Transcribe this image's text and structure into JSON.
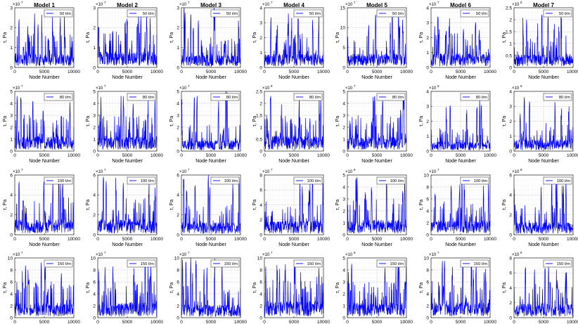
{
  "chart_data": {
    "type": "line",
    "series_color": "#0000ff",
    "grid": true,
    "legend_location": "top-right",
    "xlabel": "Node Number",
    "ylabel": "τ, Pa",
    "xlim": [
      0,
      10000
    ],
    "xticks": [
      0,
      5000,
      10000
    ],
    "column_titles": [
      "Model 1",
      "Model 2",
      "Model 3",
      "Model 4",
      "Model 5",
      "Model 6",
      "Model 7"
    ],
    "rows": [
      {
        "legend": "50 t/m",
        "panels": [
          {
            "multiplier": "×10",
            "exponent": "7",
            "ylim": [
              0,
              3
            ],
            "yticks": [
              0,
              1,
              2,
              3
            ],
            "peak_max": 2.7,
            "base": 0.45
          },
          {
            "multiplier": "×10",
            "exponent": "7",
            "ylim": [
              0,
              3
            ],
            "yticks": [
              0,
              1,
              2,
              3
            ],
            "peak_max": 2.8,
            "base": 0.5
          },
          {
            "multiplier": "×10",
            "exponent": "7",
            "ylim": [
              0,
              3
            ],
            "yticks": [
              0,
              1,
              2,
              3
            ],
            "peak_max": 3.0,
            "base": 0.4
          },
          {
            "multiplier": "×10",
            "exponent": "7",
            "ylim": [
              0,
              4
            ],
            "yticks": [
              0,
              1,
              2,
              3,
              4
            ],
            "peak_max": 3.6,
            "base": 0.6
          },
          {
            "multiplier": "×10",
            "exponent": "7",
            "ylim": [
              0,
              15
            ],
            "yticks": [
              0,
              5,
              10,
              15
            ],
            "peak_max": 13.5,
            "base": 2.2
          },
          {
            "multiplier": "×10",
            "exponent": "7",
            "ylim": [
              0,
              4
            ],
            "yticks": [
              0,
              1,
              2,
              3,
              4
            ],
            "peak_max": 3.4,
            "base": 0.6
          },
          {
            "multiplier": "×10",
            "exponent": "8",
            "ylim": [
              0,
              2.5
            ],
            "yticks": [
              0,
              0.5,
              1,
              1.5,
              2,
              2.5
            ],
            "peak_max": 2.2,
            "base": 0.35
          }
        ]
      },
      {
        "legend": "80 t/m",
        "panels": [
          {
            "multiplier": "×10",
            "exponent": "7",
            "ylim": [
              0,
              5
            ],
            "yticks": [
              0,
              1,
              2,
              3,
              4,
              5
            ],
            "peak_max": 4.6,
            "base": 0.8
          },
          {
            "multiplier": "×10",
            "exponent": "7",
            "ylim": [
              0,
              5
            ],
            "yticks": [
              0,
              1,
              2,
              3,
              4,
              5
            ],
            "peak_max": 4.6,
            "base": 0.8
          },
          {
            "multiplier": "×10",
            "exponent": "7",
            "ylim": [
              0,
              5
            ],
            "yticks": [
              0,
              1,
              2,
              3,
              4,
              5
            ],
            "peak_max": 5.0,
            "base": 0.6
          },
          {
            "multiplier": "×10",
            "exponent": "8",
            "ylim": [
              0,
              2.5
            ],
            "yticks": [
              0,
              0.5,
              1,
              1.5,
              2,
              2.5
            ],
            "peak_max": 2.3,
            "base": 0.4
          },
          {
            "multiplier": "×10",
            "exponent": "7",
            "ylim": [
              0,
              5
            ],
            "yticks": [
              0,
              1,
              2,
              3,
              4,
              5
            ],
            "peak_max": 4.6,
            "base": 0.8
          },
          {
            "multiplier": "×10",
            "exponent": "8",
            "ylim": [
              0,
              4
            ],
            "yticks": [
              0,
              1,
              2,
              3,
              4
            ],
            "peak_max": 3.4,
            "base": 0.4
          },
          {
            "multiplier": "×10",
            "exponent": "8",
            "ylim": [
              0,
              4
            ],
            "yticks": [
              0,
              1,
              2,
              3,
              4
            ],
            "peak_max": 3.6,
            "base": 0.5
          }
        ]
      },
      {
        "legend": "100 t/m",
        "panels": [
          {
            "multiplier": "×10",
            "exponent": "7",
            "ylim": [
              0,
              6
            ],
            "yticks": [
              0,
              2,
              4,
              6
            ],
            "peak_max": 5.6,
            "base": 1.0
          },
          {
            "multiplier": "×10",
            "exponent": "7",
            "ylim": [
              0,
              6
            ],
            "yticks": [
              0,
              2,
              4,
              6
            ],
            "peak_max": 5.8,
            "base": 1.0
          },
          {
            "multiplier": "×10",
            "exponent": "7",
            "ylim": [
              0,
              6
            ],
            "yticks": [
              0,
              2,
              4,
              6
            ],
            "peak_max": 6.0,
            "base": 0.8
          },
          {
            "multiplier": "×10",
            "exponent": "7",
            "ylim": [
              0,
              8
            ],
            "yticks": [
              0,
              2,
              4,
              6,
              8
            ],
            "peak_max": 7.0,
            "base": 1.2
          },
          {
            "multiplier": "×10",
            "exponent": "8",
            "ylim": [
              0,
              5
            ],
            "yticks": [
              0,
              1,
              2,
              3,
              4,
              5
            ],
            "peak_max": 4.8,
            "base": 0.8
          },
          {
            "multiplier": "×10",
            "exponent": "7",
            "ylim": [
              0,
              10
            ],
            "yticks": [
              0,
              2,
              4,
              6,
              8,
              10
            ],
            "peak_max": 8.5,
            "base": 1.5
          },
          {
            "multiplier": "×10",
            "exponent": "8",
            "ylim": [
              0,
              6
            ],
            "yticks": [
              0,
              2,
              4,
              6
            ],
            "peak_max": 5.5,
            "base": 0.8
          }
        ]
      },
      {
        "legend": "150 t/m",
        "panels": [
          {
            "multiplier": "×10",
            "exponent": "7",
            "ylim": [
              0,
              10
            ],
            "yticks": [
              0,
              2,
              4,
              6,
              8,
              10
            ],
            "peak_max": 9.2,
            "base": 1.6
          },
          {
            "multiplier": "×10",
            "exponent": "7",
            "ylim": [
              0,
              10
            ],
            "yticks": [
              0,
              2,
              4,
              6,
              8,
              10
            ],
            "peak_max": 9.4,
            "base": 1.6
          },
          {
            "multiplier": "×10",
            "exponent": "7",
            "ylim": [
              0,
              10
            ],
            "yticks": [
              0,
              2,
              4,
              6,
              8,
              10
            ],
            "peak_max": 10.0,
            "base": 1.4
          },
          {
            "multiplier": "×10",
            "exponent": "7",
            "ylim": [
              0,
              10
            ],
            "yticks": [
              0,
              2,
              4,
              6,
              8,
              10
            ],
            "peak_max": 9.0,
            "base": 1.8
          },
          {
            "multiplier": "×10",
            "exponent": "8",
            "ylim": [
              0,
              5
            ],
            "yticks": [
              0,
              1,
              2,
              3,
              4,
              5
            ],
            "peak_max": 4.6,
            "base": 0.8
          },
          {
            "multiplier": "×10",
            "exponent": "7",
            "ylim": [
              0,
              10
            ],
            "yticks": [
              0,
              2,
              4,
              6,
              8,
              10
            ],
            "peak_max": 9.5,
            "base": 1.6
          },
          {
            "multiplier": "×10",
            "exponent": "8",
            "ylim": [
              0,
              8
            ],
            "yticks": [
              0,
              2,
              4,
              6,
              8
            ],
            "peak_max": 6.8,
            "base": 1.2
          }
        ]
      }
    ]
  }
}
